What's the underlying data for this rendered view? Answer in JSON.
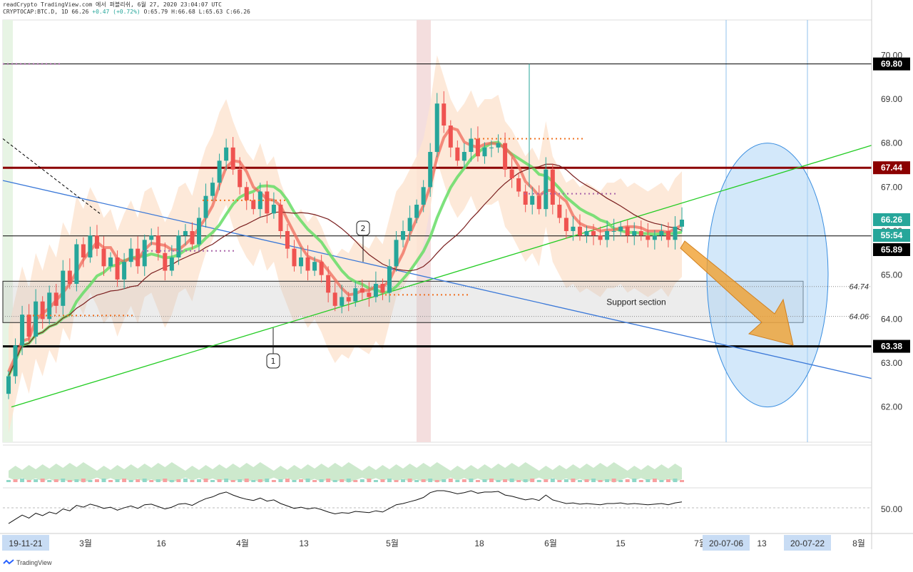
{
  "header": {
    "line1": "readCrypto TradingView.com 에서 퍼블리쉬, 6월 27, 2020 23:04:07 UTC",
    "symbol": "CRYPTOCAP:BTC.D, 1D",
    "last": "66.26",
    "change": "+0.47 (+0.72%)",
    "ohlc": "O:65.79 H:66.68 L:65.63 C:66.26"
  },
  "footer": {
    "brand": "TradingView"
  },
  "colors": {
    "up": "#26a69a",
    "down": "#ef5350",
    "fill": "#fde5d2",
    "support": "#c8c8c8",
    "ellipse": "#aed6f5",
    "arrow": "#f0a030",
    "green_line": "#22cc22",
    "blue_line": "#3a78d8",
    "resistance": "#8b0000"
  },
  "chart_data": {
    "type": "candlestick",
    "title": "",
    "xlabel": "",
    "ylabel": "",
    "ylim": [
      61.2,
      70.8
    ],
    "x_ticks": [
      "19-11-21",
      "3월",
      "16",
      "4월",
      "13",
      "5월",
      "18",
      "6월",
      "15",
      "7월",
      "20-07-06",
      "13",
      "20-07-22",
      "8월"
    ],
    "y_ticks": [
      "62.00",
      "63.00",
      "64.00",
      "65.00",
      "66.00",
      "67.00",
      "68.00",
      "69.00",
      "70.00"
    ],
    "price_tags": [
      {
        "label": "69.80",
        "value": 69.8,
        "color": "#000000"
      },
      {
        "label": "67.44",
        "value": 67.44,
        "color": "#8b0000"
      },
      {
        "label": "66.26",
        "value": 66.26,
        "color": "#26a69a"
      },
      {
        "label": "55:54",
        "value": 65.9,
        "color": "#26a69a"
      },
      {
        "label": "65.89",
        "value": 65.89,
        "color": "#000000"
      },
      {
        "label": "63.38",
        "value": 63.38,
        "color": "#000000"
      }
    ],
    "price_notes": [
      {
        "label": "64.74",
        "value": 64.74
      },
      {
        "label": "64.06",
        "value": 64.06
      }
    ],
    "annotations": {
      "support_text": "Support section",
      "support_range": [
        63.92,
        64.86
      ],
      "callout_1": "1",
      "callout_2": "2"
    },
    "candles_close": [
      62.7,
      63.4,
      64.1,
      63.6,
      64.4,
      64.0,
      64.6,
      64.3,
      65.1,
      64.8,
      65.7,
      65.4,
      65.9,
      65.6,
      65.2,
      65.4,
      64.9,
      65.3,
      65.6,
      65.2,
      65.8,
      65.9,
      65.5,
      65.1,
      65.4,
      65.9,
      66.0,
      65.7,
      66.3,
      66.8,
      67.1,
      67.6,
      67.9,
      67.4,
      67.0,
      66.7,
      66.5,
      66.9,
      66.4,
      66.6,
      66.0,
      65.6,
      65.2,
      65.4,
      65.1,
      65.3,
      65.0,
      64.6,
      64.3,
      64.5,
      64.4,
      64.7,
      64.6,
      64.5,
      64.8,
      64.6,
      65.2,
      65.8,
      66.0,
      66.3,
      66.6,
      67.0,
      67.8,
      68.9,
      68.4,
      67.9,
      67.6,
      67.8,
      68.1,
      67.7,
      67.9,
      67.9,
      68.0,
      67.4,
      67.2,
      66.9,
      66.6,
      66.8,
      66.5,
      67.4,
      66.6,
      66.3,
      66.0,
      66.1,
      65.9,
      66.0,
      65.9,
      65.8,
      66.0,
      66.0,
      66.1,
      65.9,
      66.0,
      65.9,
      65.8,
      65.9,
      66.0,
      65.8,
      66.1,
      66.26
    ],
    "moving_averages": [
      {
        "name": "",
        "color": "#26c6da"
      },
      {
        "name": "",
        "color": "#7a1f1f"
      }
    ],
    "indicators": [
      {
        "name": "",
        "levels": [
          "0"
        ]
      },
      {
        "name": "",
        "levels": [
          "50.00"
        ]
      }
    ]
  }
}
